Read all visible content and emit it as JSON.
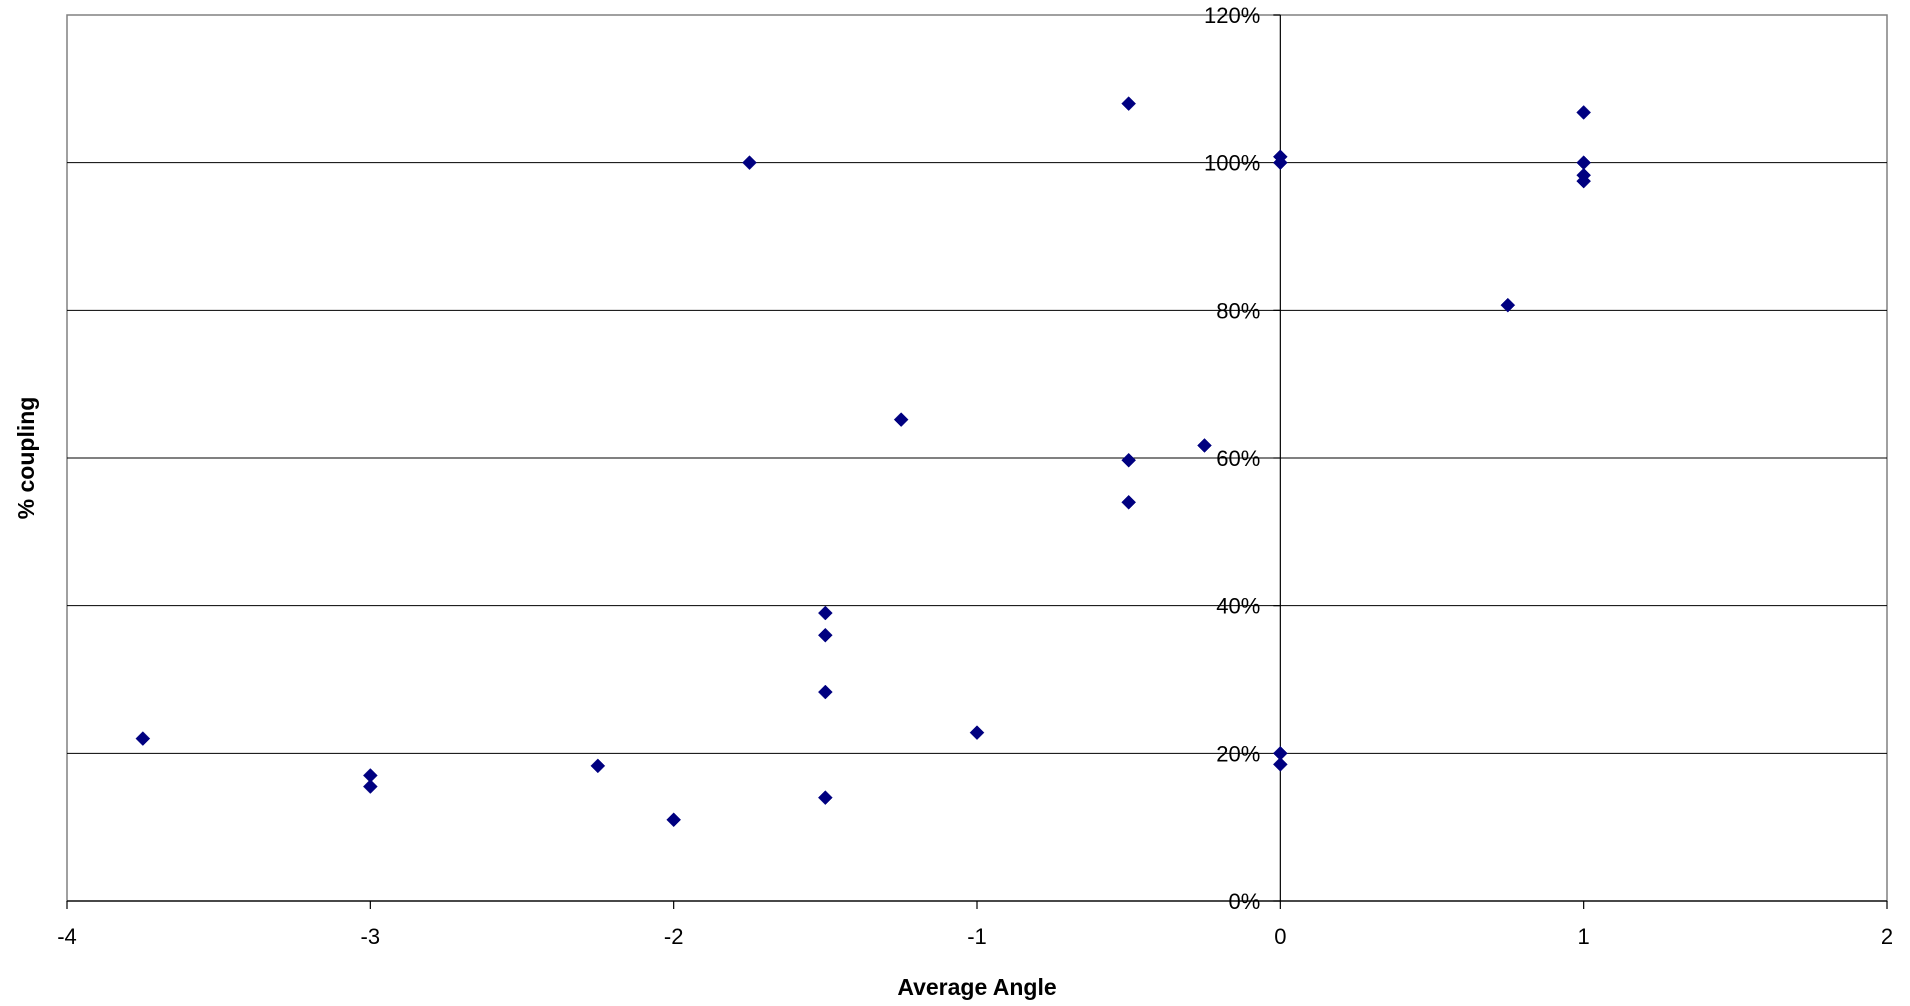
{
  "chart_data": {
    "type": "scatter",
    "title": "",
    "xlabel": "Average Angle",
    "ylabel": "% coupling",
    "xlim": [
      -4,
      2
    ],
    "ylim": [
      0,
      1.2
    ],
    "x_ticks": [
      -4,
      -3,
      -2,
      -1,
      0,
      1,
      2
    ],
    "x_tick_labels": [
      "-4",
      "-3",
      "-2",
      "-1",
      "0",
      "1",
      "2"
    ],
    "y_ticks": [
      0,
      0.2,
      0.4,
      0.6,
      0.8,
      1.0,
      1.2
    ],
    "y_tick_labels": [
      "0%",
      "20%",
      "40%",
      "60%",
      "80%",
      "100%",
      "120%"
    ],
    "grid": "horizontal",
    "legend": "none",
    "marker": "diamond",
    "colors": {
      "marker": "#000080",
      "grid": "#000000",
      "axis": "#000000",
      "plot_border": "#808080"
    },
    "series": [
      {
        "points": [
          {
            "x": -3.75,
            "y": 0.22
          },
          {
            "x": -3.0,
            "y": 0.17
          },
          {
            "x": -3.0,
            "y": 0.155
          },
          {
            "x": -2.25,
            "y": 0.183
          },
          {
            "x": -2.0,
            "y": 0.11
          },
          {
            "x": -1.75,
            "y": 1.0
          },
          {
            "x": -1.5,
            "y": 0.39
          },
          {
            "x": -1.5,
            "y": 0.36
          },
          {
            "x": -1.5,
            "y": 0.283
          },
          {
            "x": -1.5,
            "y": 0.14
          },
          {
            "x": -1.25,
            "y": 0.652
          },
          {
            "x": -1.0,
            "y": 0.228
          },
          {
            "x": -0.5,
            "y": 1.08
          },
          {
            "x": -0.5,
            "y": 0.597
          },
          {
            "x": -0.5,
            "y": 0.54
          },
          {
            "x": -0.25,
            "y": 0.617
          },
          {
            "x": 0.0,
            "y": 1.008
          },
          {
            "x": 0.0,
            "y": 1.0
          },
          {
            "x": 0.0,
            "y": 0.2
          },
          {
            "x": 0.0,
            "y": 0.185
          },
          {
            "x": 0.75,
            "y": 0.807
          },
          {
            "x": 1.0,
            "y": 1.068
          },
          {
            "x": 1.0,
            "y": 1.0
          },
          {
            "x": 1.0,
            "y": 0.983
          },
          {
            "x": 1.0,
            "y": 0.975
          }
        ]
      }
    ]
  }
}
